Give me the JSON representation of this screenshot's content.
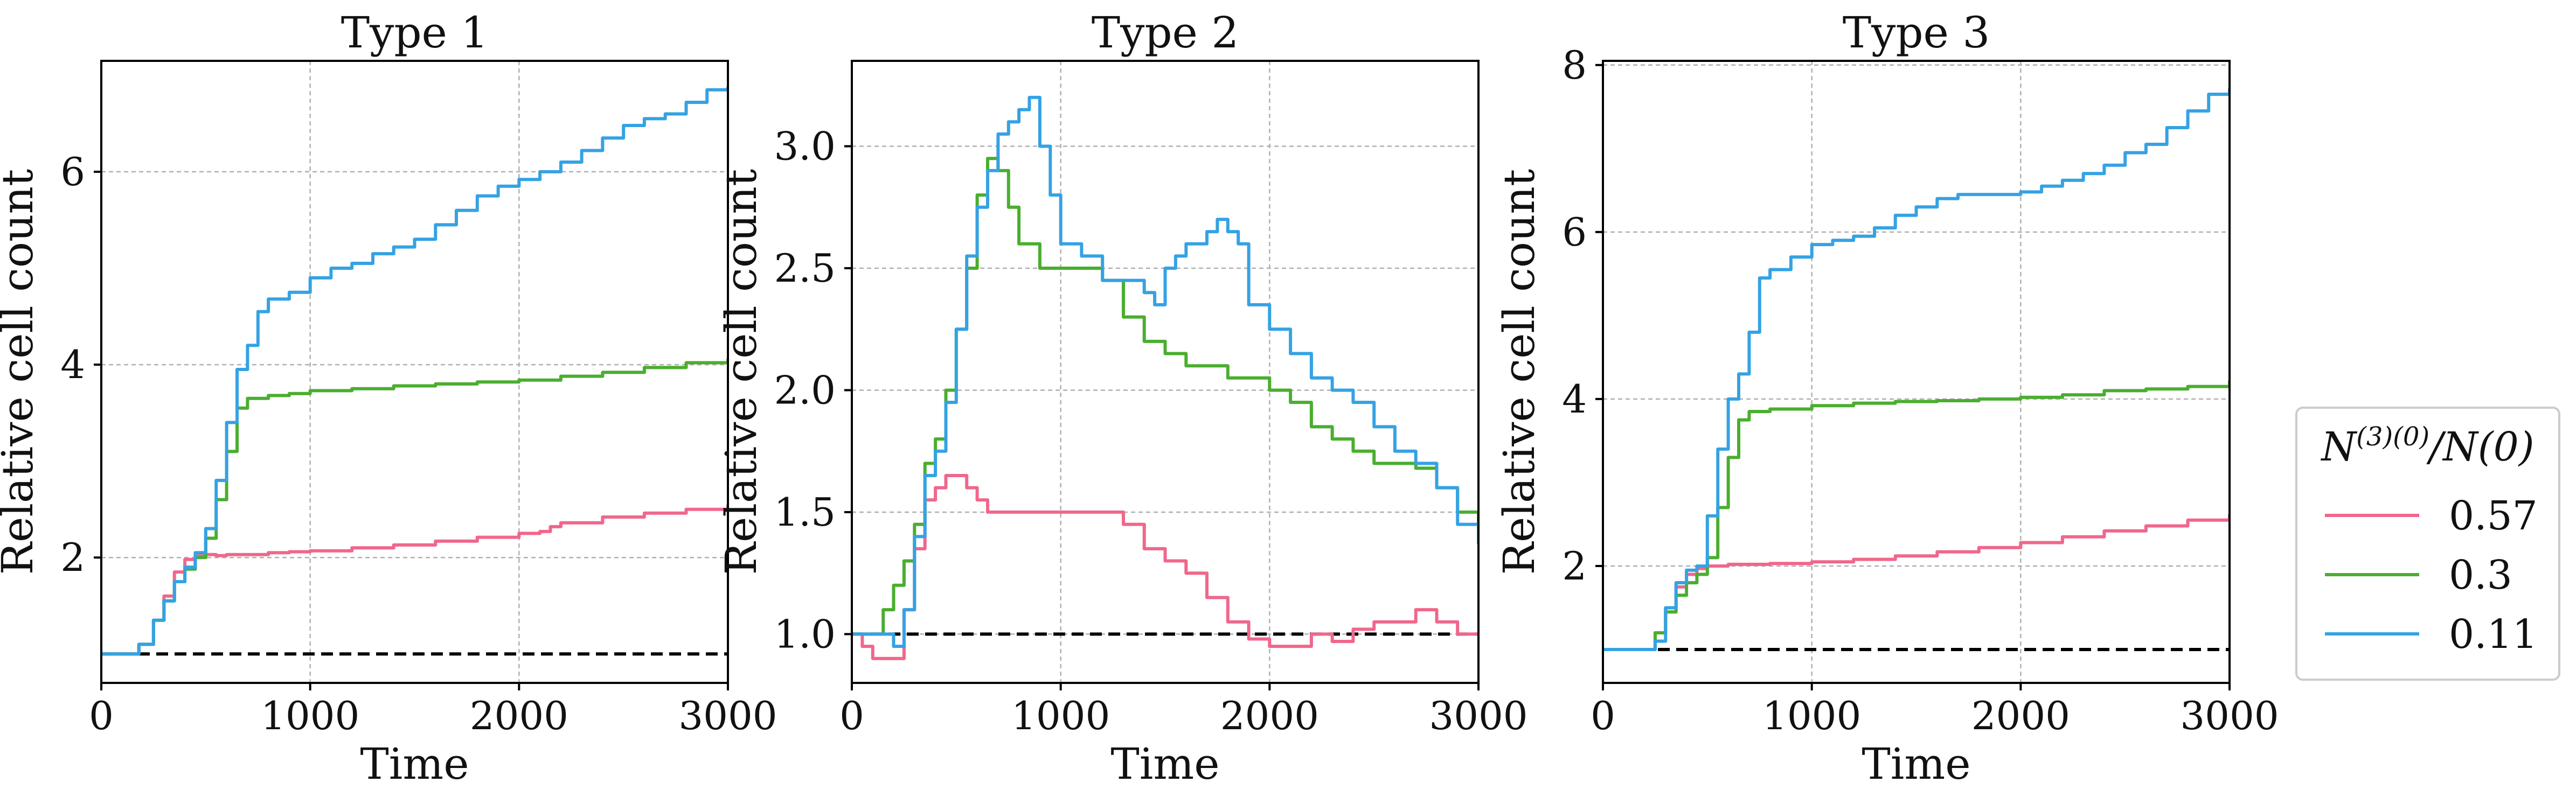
{
  "legend": {
    "title": "N^(3)(0)/N(0)",
    "entries": [
      {
        "label": "0.57",
        "color": "#f0678b"
      },
      {
        "label": "0.3",
        "color": "#4aae2f"
      },
      {
        "label": "0.11",
        "color": "#35a2e3"
      }
    ]
  },
  "chart_data": [
    {
      "type": "line",
      "title": "Type 1",
      "xlabel": "Time",
      "ylabel": "Relative cell count",
      "xlim": [
        0,
        3000
      ],
      "ylim": [
        0.7,
        7.15
      ],
      "xticks": [
        0,
        1000,
        2000,
        3000
      ],
      "yticks": [
        2,
        4,
        6
      ],
      "grid": true,
      "reference_line": 1.0,
      "series": [
        {
          "name": "0.57",
          "color": "#f0678b",
          "x": [
            0,
            120,
            180,
            250,
            300,
            350,
            400,
            450,
            500,
            550,
            600,
            700,
            800,
            900,
            1000,
            1200,
            1400,
            1600,
            1800,
            2000,
            2100,
            2150,
            2200,
            2400,
            2600,
            2800,
            3000
          ],
          "y": [
            1.0,
            1.0,
            1.1,
            1.35,
            1.6,
            1.85,
            1.98,
            2.02,
            2.03,
            2.02,
            2.03,
            2.03,
            2.05,
            2.06,
            2.07,
            2.1,
            2.13,
            2.17,
            2.21,
            2.25,
            2.27,
            2.32,
            2.36,
            2.42,
            2.46,
            2.5,
            2.55
          ]
        },
        {
          "name": "0.3",
          "color": "#4aae2f",
          "x": [
            0,
            120,
            180,
            250,
            300,
            350,
            400,
            450,
            500,
            550,
            600,
            650,
            700,
            800,
            900,
            1000,
            1200,
            1400,
            1600,
            1800,
            2000,
            2200,
            2400,
            2600,
            2800,
            3000
          ],
          "y": [
            1.0,
            1.0,
            1.1,
            1.35,
            1.55,
            1.75,
            1.88,
            2.0,
            2.2,
            2.6,
            3.1,
            3.55,
            3.65,
            3.68,
            3.7,
            3.73,
            3.75,
            3.78,
            3.8,
            3.82,
            3.84,
            3.88,
            3.92,
            3.97,
            4.02,
            4.06
          ]
        },
        {
          "name": "0.11",
          "color": "#35a2e3",
          "x": [
            0,
            120,
            180,
            250,
            300,
            350,
            400,
            450,
            500,
            550,
            600,
            650,
            700,
            750,
            800,
            900,
            1000,
            1100,
            1200,
            1300,
            1400,
            1500,
            1600,
            1700,
            1800,
            1900,
            2000,
            2100,
            2200,
            2300,
            2400,
            2500,
            2600,
            2700,
            2800,
            2900,
            3000
          ],
          "y": [
            1.0,
            1.0,
            1.1,
            1.35,
            1.55,
            1.75,
            1.9,
            2.05,
            2.3,
            2.8,
            3.4,
            3.95,
            4.2,
            4.55,
            4.68,
            4.75,
            4.9,
            5.0,
            5.05,
            5.15,
            5.22,
            5.3,
            5.45,
            5.6,
            5.75,
            5.85,
            5.92,
            6.0,
            6.1,
            6.22,
            6.35,
            6.48,
            6.55,
            6.6,
            6.72,
            6.85,
            6.88
          ]
        }
      ]
    },
    {
      "type": "line",
      "title": "Type 2",
      "xlabel": "Time",
      "ylabel": "Relative cell count",
      "xlim": [
        0,
        3000
      ],
      "ylim": [
        0.8,
        3.35
      ],
      "xticks": [
        0,
        1000,
        2000,
        3000
      ],
      "yticks": [
        1.0,
        1.5,
        2.0,
        2.5,
        3.0
      ],
      "grid": true,
      "reference_line": 1.0,
      "series": [
        {
          "name": "0.57",
          "color": "#f0678b",
          "x": [
            0,
            50,
            100,
            200,
            250,
            300,
            350,
            400,
            450,
            500,
            550,
            600,
            650,
            700,
            800,
            900,
            1000,
            1100,
            1200,
            1300,
            1400,
            1500,
            1600,
            1700,
            1800,
            1900,
            2000,
            2100,
            2200,
            2300,
            2400,
            2500,
            2600,
            2700,
            2800,
            2900,
            3000
          ],
          "y": [
            1.0,
            0.95,
            0.9,
            0.9,
            1.1,
            1.35,
            1.55,
            1.6,
            1.65,
            1.65,
            1.6,
            1.55,
            1.5,
            1.5,
            1.5,
            1.5,
            1.5,
            1.5,
            1.5,
            1.45,
            1.35,
            1.3,
            1.25,
            1.15,
            1.05,
            0.98,
            0.95,
            0.95,
            1.0,
            0.97,
            1.02,
            1.05,
            1.05,
            1.1,
            1.05,
            1.0,
            1.0
          ]
        },
        {
          "name": "0.3",
          "color": "#4aae2f",
          "x": [
            0,
            100,
            150,
            200,
            250,
            300,
            350,
            400,
            450,
            500,
            550,
            600,
            650,
            700,
            750,
            800,
            900,
            1000,
            1100,
            1200,
            1300,
            1400,
            1500,
            1600,
            1700,
            1800,
            1900,
            2000,
            2100,
            2200,
            2300,
            2400,
            2500,
            2600,
            2700,
            2800,
            2900,
            3000
          ],
          "y": [
            1.0,
            1.0,
            1.1,
            1.2,
            1.3,
            1.45,
            1.7,
            1.8,
            2.0,
            2.25,
            2.5,
            2.8,
            2.95,
            2.9,
            2.75,
            2.6,
            2.5,
            2.5,
            2.5,
            2.45,
            2.3,
            2.2,
            2.15,
            2.1,
            2.1,
            2.05,
            2.05,
            2.0,
            1.95,
            1.85,
            1.8,
            1.75,
            1.7,
            1.7,
            1.68,
            1.6,
            1.5,
            1.45
          ]
        },
        {
          "name": "0.11",
          "color": "#35a2e3",
          "x": [
            0,
            150,
            200,
            250,
            300,
            350,
            400,
            450,
            500,
            550,
            600,
            650,
            700,
            750,
            800,
            850,
            900,
            950,
            1000,
            1100,
            1200,
            1300,
            1400,
            1450,
            1500,
            1550,
            1600,
            1700,
            1750,
            1800,
            1850,
            1900,
            2000,
            2100,
            2200,
            2300,
            2400,
            2500,
            2600,
            2700,
            2800,
            2900,
            3000
          ],
          "y": [
            1.0,
            1.0,
            0.95,
            1.1,
            1.4,
            1.65,
            1.75,
            1.95,
            2.25,
            2.55,
            2.75,
            2.9,
            3.05,
            3.1,
            3.15,
            3.2,
            3.0,
            2.8,
            2.6,
            2.55,
            2.45,
            2.45,
            2.4,
            2.35,
            2.5,
            2.55,
            2.6,
            2.65,
            2.7,
            2.65,
            2.6,
            2.35,
            2.25,
            2.15,
            2.05,
            2.0,
            1.95,
            1.85,
            1.75,
            1.7,
            1.6,
            1.45,
            1.37
          ]
        }
      ]
    },
    {
      "type": "line",
      "title": "Type 3",
      "xlabel": "Time",
      "ylabel": "Relative cell count",
      "xlim": [
        0,
        3000
      ],
      "ylim": [
        0.6,
        8.05
      ],
      "xticks": [
        0,
        1000,
        2000,
        3000
      ],
      "yticks": [
        2,
        4,
        6,
        8
      ],
      "grid": true,
      "reference_line": 1.0,
      "series": [
        {
          "name": "0.57",
          "color": "#f0678b",
          "x": [
            0,
            200,
            250,
            300,
            350,
            400,
            450,
            500,
            600,
            800,
            1000,
            1200,
            1400,
            1600,
            1800,
            2000,
            2200,
            2400,
            2600,
            2800,
            3000
          ],
          "y": [
            1.0,
            1.0,
            1.2,
            1.5,
            1.75,
            1.9,
            1.97,
            2.0,
            2.02,
            2.03,
            2.05,
            2.08,
            2.12,
            2.17,
            2.22,
            2.28,
            2.35,
            2.42,
            2.48,
            2.55,
            2.62
          ]
        },
        {
          "name": "0.3",
          "color": "#4aae2f",
          "x": [
            0,
            200,
            250,
            300,
            350,
            400,
            450,
            500,
            550,
            600,
            650,
            700,
            800,
            1000,
            1200,
            1400,
            1600,
            1800,
            2000,
            2200,
            2400,
            2600,
            2800,
            3000
          ],
          "y": [
            1.0,
            1.0,
            1.2,
            1.45,
            1.65,
            1.8,
            1.9,
            2.1,
            2.7,
            3.3,
            3.75,
            3.85,
            3.88,
            3.92,
            3.95,
            3.97,
            3.98,
            4.0,
            4.02,
            4.05,
            4.1,
            4.12,
            4.15,
            4.22
          ]
        },
        {
          "name": "0.11",
          "color": "#35a2e3",
          "x": [
            0,
            200,
            250,
            300,
            350,
            400,
            450,
            500,
            550,
            600,
            650,
            700,
            750,
            800,
            900,
            1000,
            1100,
            1200,
            1300,
            1400,
            1500,
            1600,
            1700,
            1800,
            1900,
            2000,
            2100,
            2200,
            2300,
            2400,
            2500,
            2600,
            2700,
            2800,
            2900,
            3000
          ],
          "y": [
            1.0,
            1.0,
            1.1,
            1.5,
            1.8,
            1.95,
            2.0,
            2.6,
            3.4,
            4.0,
            4.3,
            4.8,
            5.45,
            5.55,
            5.7,
            5.85,
            5.9,
            5.95,
            6.05,
            6.2,
            6.3,
            6.4,
            6.45,
            6.45,
            6.45,
            6.48,
            6.55,
            6.62,
            6.7,
            6.8,
            6.95,
            7.05,
            7.25,
            7.45,
            7.65,
            7.72
          ]
        }
      ]
    }
  ]
}
